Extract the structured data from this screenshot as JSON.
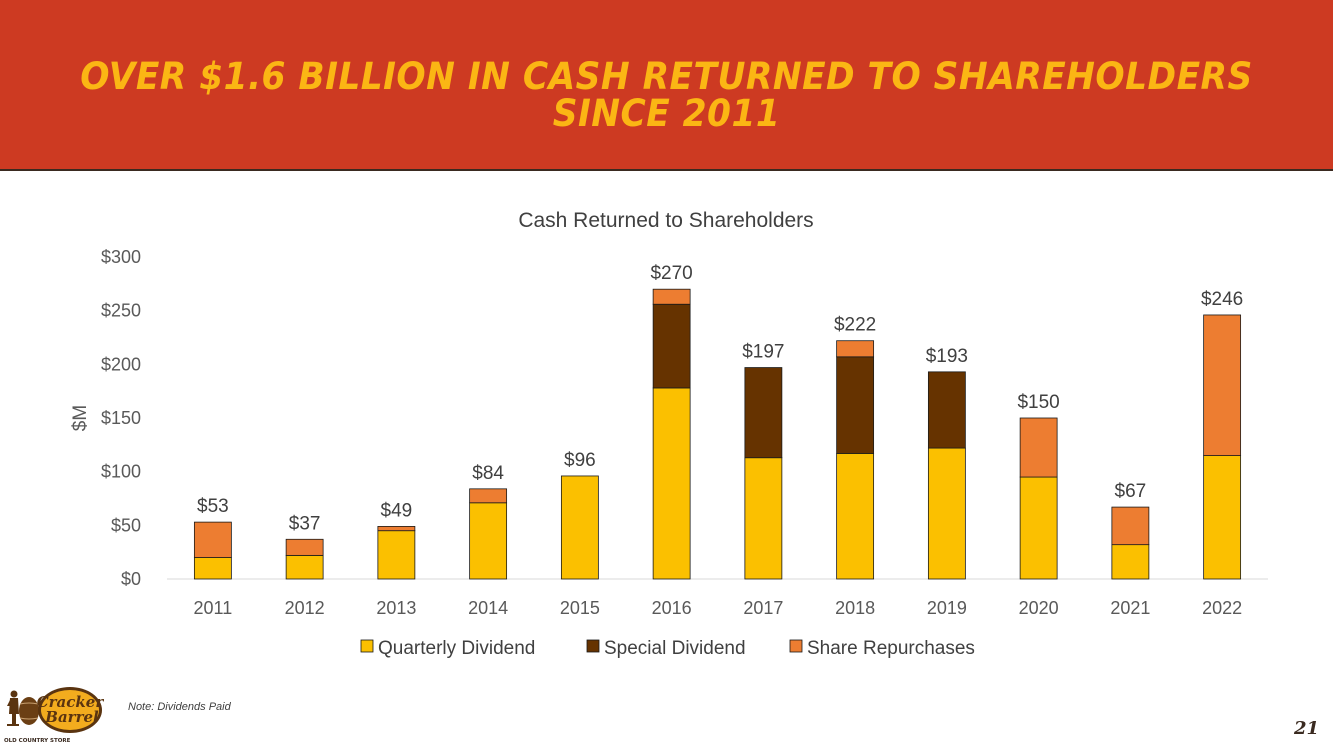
{
  "slide": {
    "title": "OVER $1.6 BILLION IN CASH RETURNED TO SHAREHOLDERS SINCE 2011",
    "note": "Note: Dividends Paid",
    "page_number": "21",
    "logo_text": "Cracker Barrel",
    "logo_subtext": "OLD COUNTRY STORE"
  },
  "colors": {
    "banner": "#cd3a22",
    "title": "#fbb614",
    "quarterly": "#fbc000",
    "special": "#663300",
    "repurchase": "#ed7d31"
  },
  "chart_data": {
    "type": "bar",
    "stacked": true,
    "title": "Cash Returned to Shareholders",
    "ylabel": "$M",
    "xlabel": "",
    "ylim": [
      0,
      300
    ],
    "yticks": [
      0,
      50,
      100,
      150,
      200,
      250,
      300
    ],
    "ytick_labels": [
      "$0",
      "$50",
      "$100",
      "$150",
      "$200",
      "$250",
      "$300"
    ],
    "categories": [
      "2011",
      "2012",
      "2013",
      "2014",
      "2015",
      "2016",
      "2017",
      "2018",
      "2019",
      "2020",
      "2021",
      "2022"
    ],
    "series": [
      {
        "name": "Quarterly Dividend",
        "color": "#fbc000",
        "values": [
          20,
          22,
          45,
          71,
          96,
          178,
          113,
          117,
          122,
          95,
          32,
          115
        ]
      },
      {
        "name": "Special Dividend",
        "color": "#663300",
        "values": [
          0,
          0,
          0,
          0,
          0,
          78,
          84,
          90,
          71,
          0,
          0,
          0
        ]
      },
      {
        "name": "Share Repurchases",
        "color": "#ed7d31",
        "values": [
          33,
          15,
          4,
          13,
          0,
          14,
          0,
          15,
          0,
          55,
          35,
          131
        ]
      }
    ],
    "totals": [
      53,
      37,
      49,
      84,
      96,
      270,
      197,
      222,
      193,
      150,
      67,
      246
    ],
    "total_labels": [
      "$53",
      "$37",
      "$49",
      "$84",
      "$96",
      "$270",
      "$197",
      "$222",
      "$193",
      "$150",
      "$67",
      "$246"
    ],
    "grid": false,
    "legend": "bottom"
  }
}
